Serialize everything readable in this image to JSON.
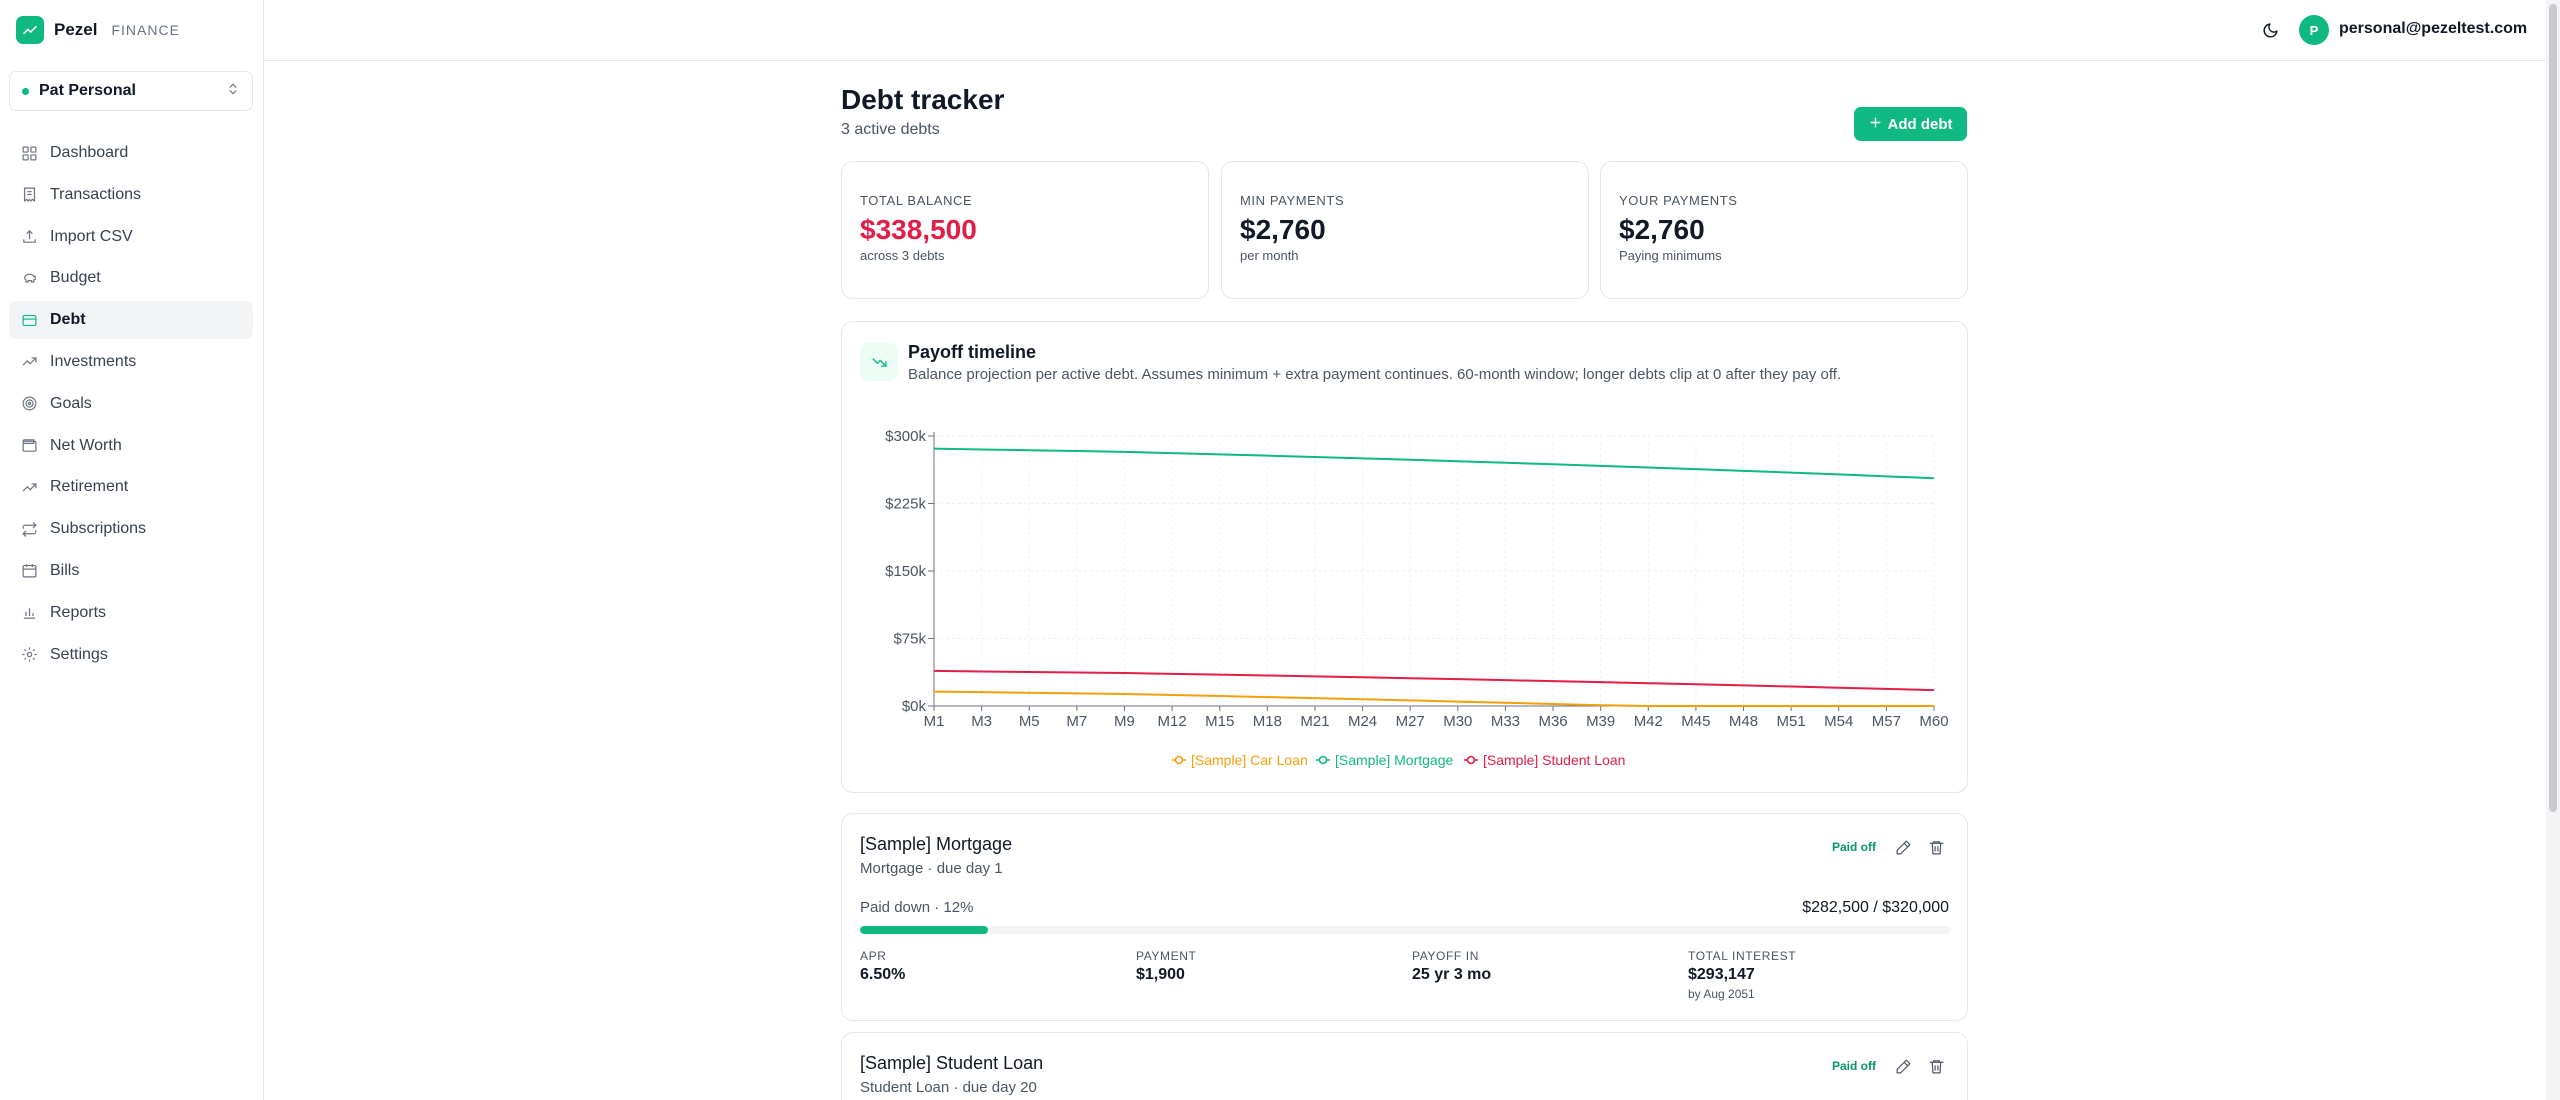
{
  "brand": {
    "name": "Pezel",
    "sub": "FINANCE"
  },
  "profile": {
    "name": "Pat Personal"
  },
  "nav": [
    {
      "label": "Dashboard",
      "icon": "dashboard-icon"
    },
    {
      "label": "Transactions",
      "icon": "receipt-icon"
    },
    {
      "label": "Import CSV",
      "icon": "upload-icon"
    },
    {
      "label": "Budget",
      "icon": "piggy-bank-icon"
    },
    {
      "label": "Debt",
      "icon": "credit-card-icon",
      "active": true
    },
    {
      "label": "Investments",
      "icon": "trending-up-icon"
    },
    {
      "label": "Goals",
      "icon": "target-icon"
    },
    {
      "label": "Net Worth",
      "icon": "wallet-icon"
    },
    {
      "label": "Retirement",
      "icon": "trending-up-icon"
    },
    {
      "label": "Subscriptions",
      "icon": "repeat-icon"
    },
    {
      "label": "Bills",
      "icon": "calendar-icon"
    },
    {
      "label": "Reports",
      "icon": "bar-chart-icon"
    },
    {
      "label": "Settings",
      "icon": "gear-icon"
    }
  ],
  "user": {
    "initial": "P",
    "email": "personal@pezeltest.com"
  },
  "page": {
    "title": "Debt tracker",
    "subtitle": "3 active debts",
    "add_label": "Add debt"
  },
  "stats": [
    {
      "label": "TOTAL BALANCE",
      "value": "$338,500",
      "note": "across 3 debts",
      "color": "#e11d48"
    },
    {
      "label": "MIN PAYMENTS",
      "value": "$2,760",
      "note": "per month"
    },
    {
      "label": "YOUR PAYMENTS",
      "value": "$2,760",
      "note": "Paying minimums"
    }
  ],
  "chart": {
    "title": "Payoff timeline",
    "description": "Balance projection per active debt. Assumes minimum + extra payment continues. 60-month window; longer debts clip at 0 after they pay off."
  },
  "chart_data": {
    "type": "line",
    "x": [
      "M1",
      "M3",
      "M5",
      "M7",
      "M9",
      "M12",
      "M15",
      "M18",
      "M21",
      "M24",
      "M27",
      "M30",
      "M33",
      "M36",
      "M39",
      "M42",
      "M45",
      "M48",
      "M51",
      "M54",
      "M57",
      "M60"
    ],
    "ylim": [
      0,
      300000
    ],
    "y_ticks": [
      "$0k",
      "$75k",
      "$150k",
      "$225k",
      "$300k"
    ],
    "grid": true,
    "legend_position": "bottom",
    "series": [
      {
        "name": "[Sample] Car Loan",
        "color": "#f59e0b",
        "values": [
          16000,
          15400,
          14700,
          14000,
          13300,
          12200,
          11100,
          9900,
          8700,
          7500,
          6200,
          4900,
          3600,
          2200,
          800,
          0,
          0,
          0,
          0,
          0,
          0,
          0
        ]
      },
      {
        "name": "[Sample] Mortgage",
        "color": "#10b981",
        "values": [
          286000,
          285000,
          284200,
          283300,
          282400,
          281000,
          279600,
          278200,
          276700,
          275200,
          273600,
          272000,
          270300,
          268600,
          266800,
          265000,
          263200,
          261300,
          259300,
          257300,
          255200,
          253100
        ]
      },
      {
        "name": "[Sample] Student Loan",
        "color": "#e11d48",
        "values": [
          39000,
          38400,
          37800,
          37200,
          36600,
          35700,
          34800,
          33900,
          32900,
          31900,
          30900,
          29800,
          28700,
          27600,
          26500,
          25300,
          24100,
          22900,
          21600,
          20300,
          19000,
          17700
        ]
      }
    ]
  },
  "debts": [
    {
      "name": "[Sample] Mortgage",
      "type": "Mortgage · due day 1",
      "badge": "Paid off",
      "paid_label": "Paid down · 12%",
      "paid_fraction": 0.117,
      "amounts": "$282,500 / $320,000",
      "metrics": [
        {
          "label": "APR",
          "value": "6.50%"
        },
        {
          "label": "PAYMENT",
          "value": "$1,900"
        },
        {
          "label": "PAYOFF IN",
          "value": "25 yr 3 mo"
        },
        {
          "label": "TOTAL INTEREST",
          "value": "$293,147",
          "note": "by Aug 2051"
        }
      ]
    },
    {
      "name": "[Sample] Student Loan",
      "type": "Student Loan · due day 20",
      "badge": "Paid off"
    }
  ]
}
